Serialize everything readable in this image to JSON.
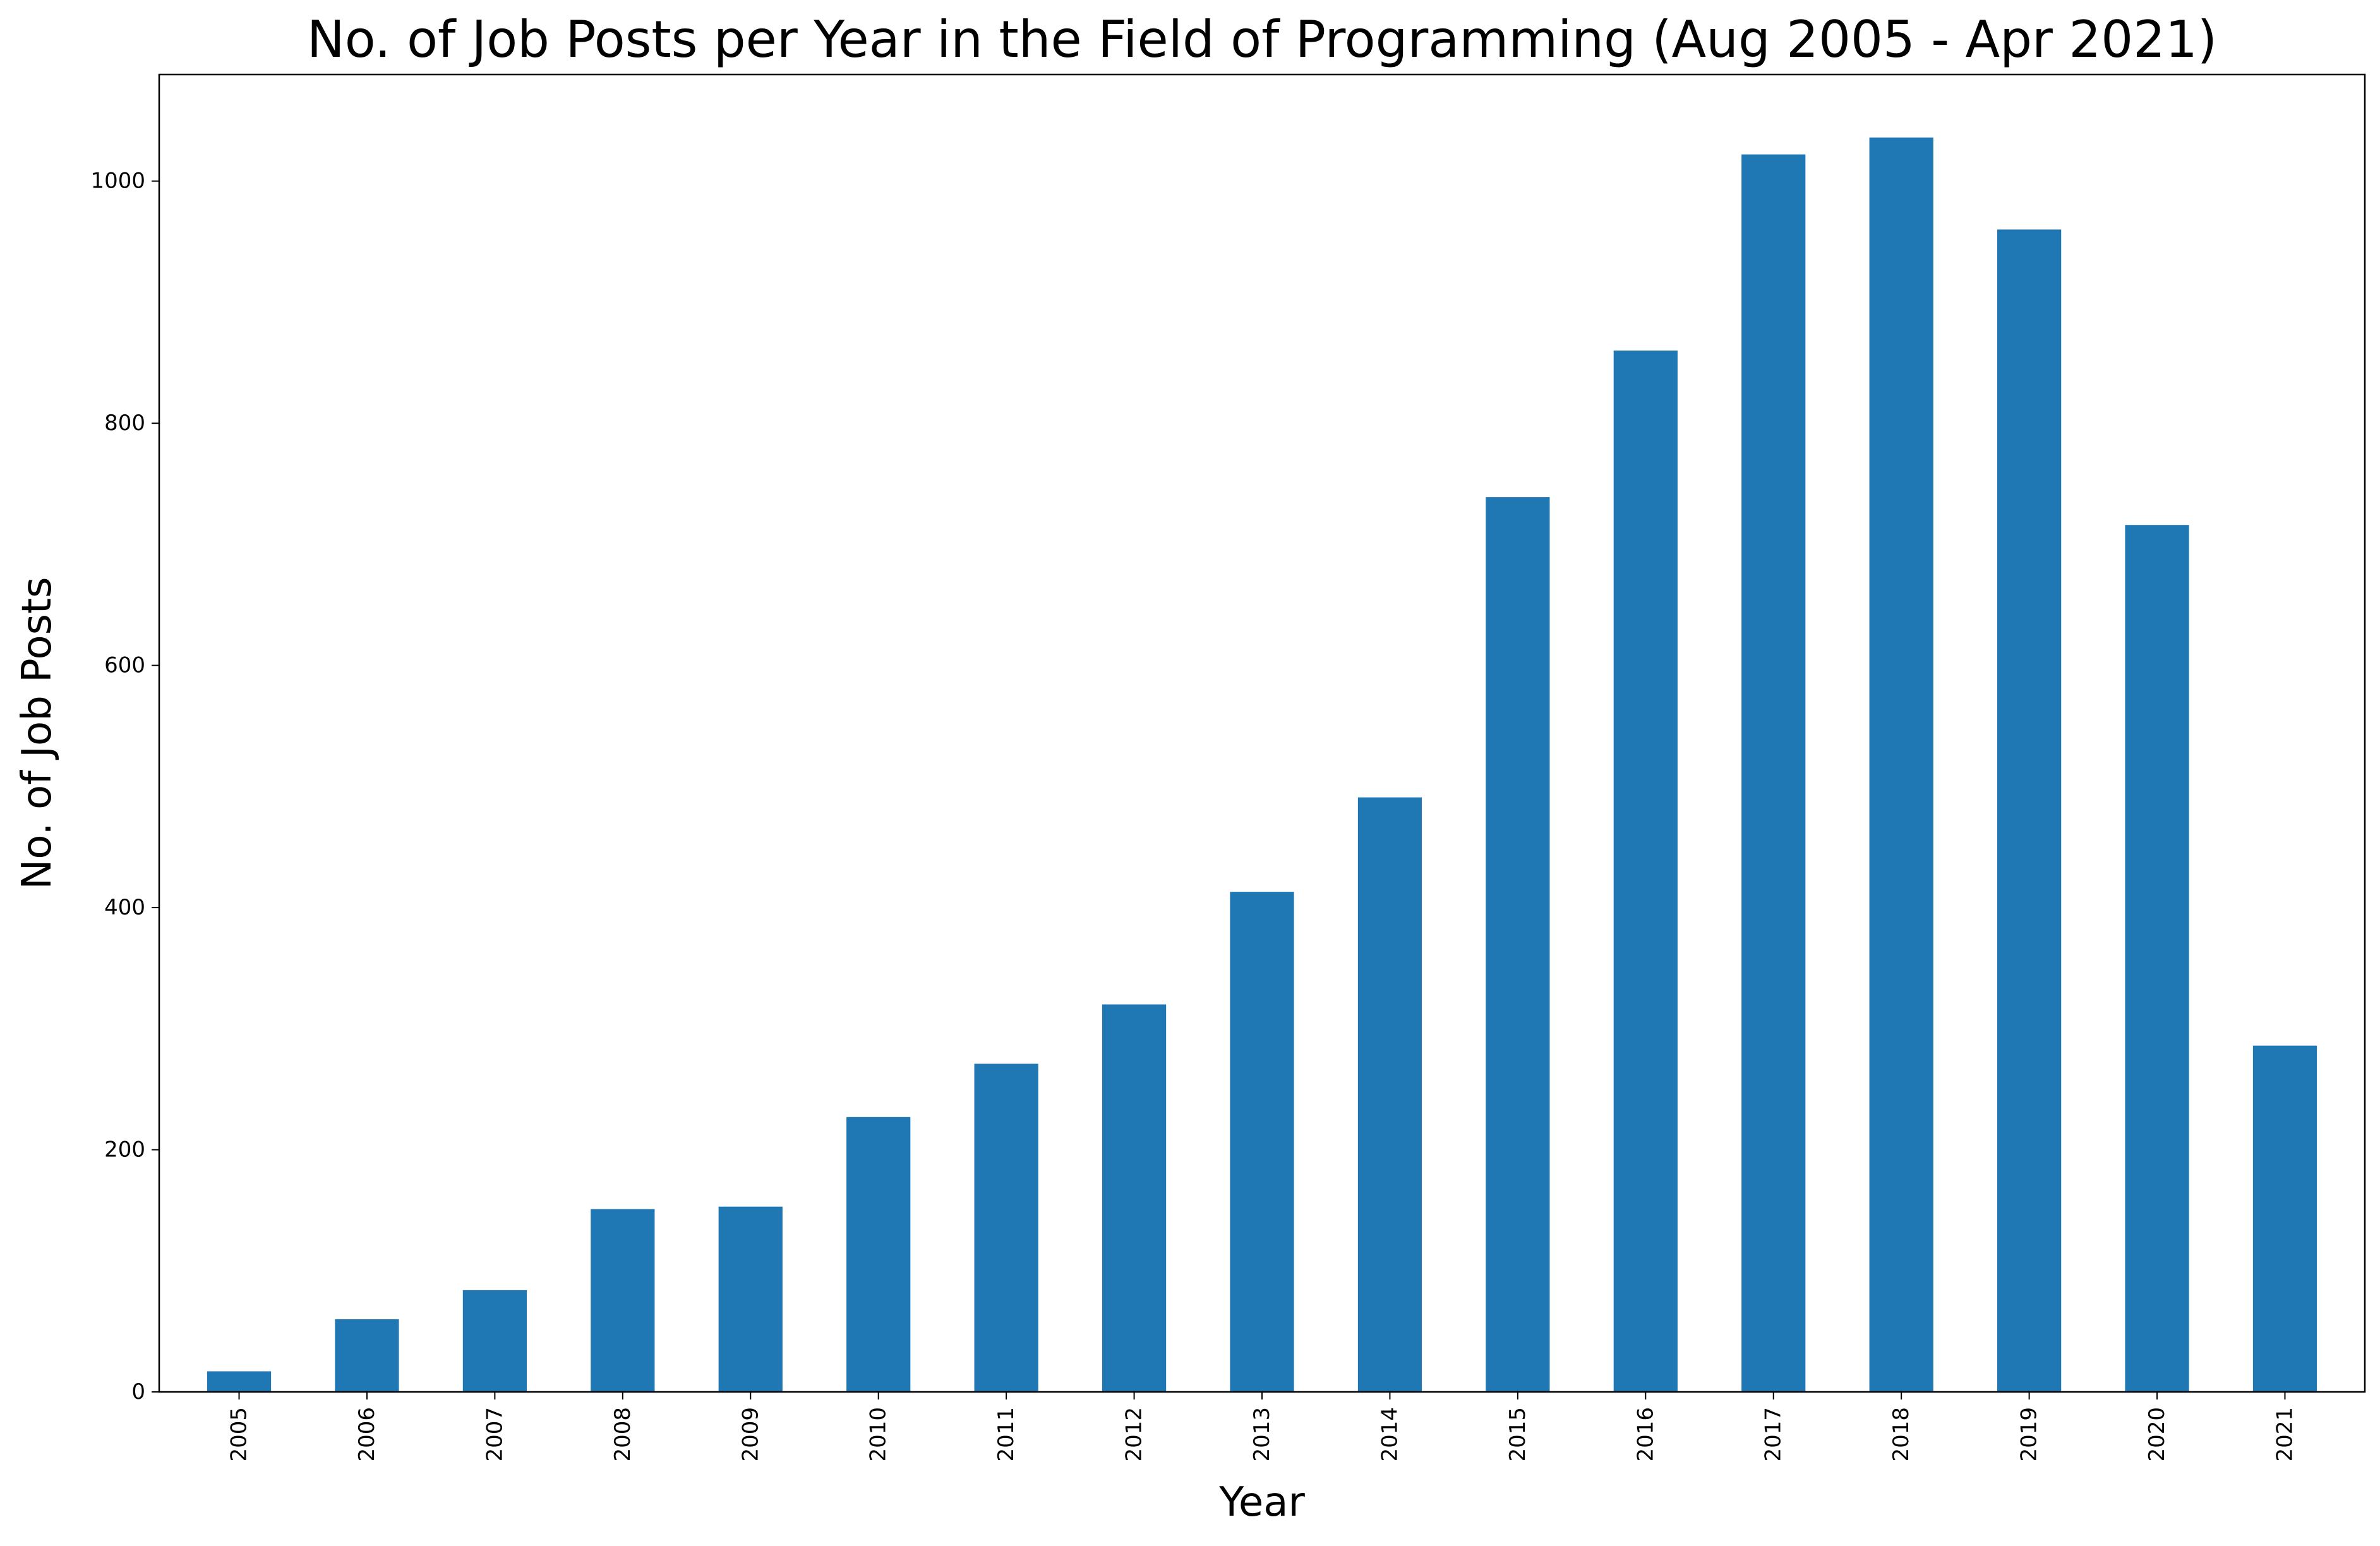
{
  "chart_data": {
    "type": "bar",
    "title": "No. of Job Posts per Year in the Field of Programming (Aug 2005 - Apr 2021)",
    "xlabel": "Year",
    "ylabel": "No. of Job Posts",
    "categories": [
      "2005",
      "2006",
      "2007",
      "2008",
      "2009",
      "2010",
      "2011",
      "2012",
      "2013",
      "2014",
      "2015",
      "2016",
      "2017",
      "2018",
      "2019",
      "2020",
      "2021"
    ],
    "values": [
      17,
      60,
      84,
      151,
      153,
      227,
      271,
      320,
      413,
      491,
      739,
      860,
      1022,
      1036,
      960,
      716,
      286
    ],
    "ylim": [
      0,
      1088
    ],
    "yticks": [
      0,
      200,
      400,
      600,
      800,
      1000
    ],
    "grid": false,
    "legend": "none",
    "bar_color": "#1f77b4"
  }
}
